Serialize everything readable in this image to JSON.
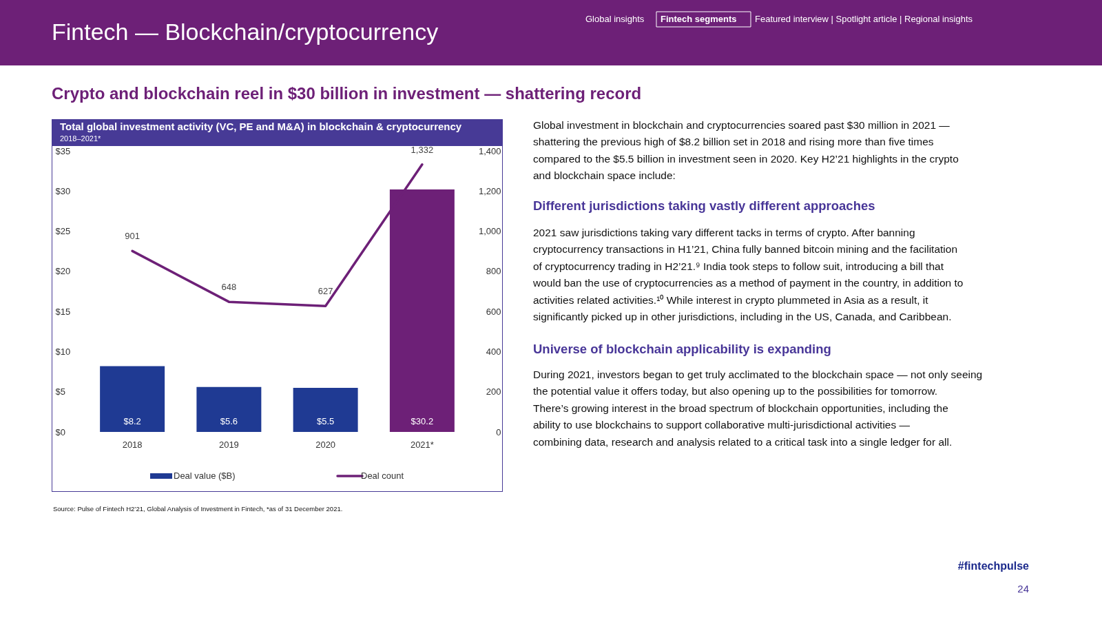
{
  "chart_data": {
    "type": "bar",
    "title": "Total global investment activity (VC, PE and M&A) in blockchain & cryptocurrency",
    "subtitle": "2018–2021*",
    "categories": [
      "2018",
      "2019",
      "2020",
      "2021*"
    ],
    "series": [
      {
        "name": "Deal value ($B)",
        "color": "#1f3a93",
        "colors": [
          "#1f3a93",
          "#1f3a93",
          "#1f3a93",
          "#6d2077"
        ],
        "values": [
          8.2,
          5.6,
          5.5,
          30.2
        ],
        "value_labels": [
          "$8.2",
          "$5.6",
          "$5.5",
          "$30.2"
        ]
      },
      {
        "name": "Deal count",
        "type": "line",
        "axis": "y2",
        "color": "#6d2077",
        "values": [
          901,
          648,
          627,
          1332
        ],
        "value_labels": [
          "901",
          "648",
          "627",
          "1,332"
        ]
      }
    ],
    "ylim": [
      0,
      35
    ],
    "yticks": [
      {
        "value": 0,
        "label": "$0"
      },
      {
        "value": 5,
        "label": "$5"
      },
      {
        "value": 10,
        "label": "$10"
      },
      {
        "value": 15,
        "label": "$15"
      },
      {
        "value": 20,
        "label": "$20"
      },
      {
        "value": 25,
        "label": "$25"
      },
      {
        "value": 30,
        "label": "$30"
      },
      {
        "value": 35,
        "label": "$35"
      }
    ],
    "y2lim": [
      0,
      1400
    ],
    "y2ticks": [
      0,
      200,
      400,
      600,
      800,
      {
        "value": 1000,
        "label": "1,000"
      },
      {
        "value": 1200,
        "label": "1,200"
      },
      {
        "value": 1400,
        "label": "1,400"
      }
    ],
    "grid": false,
    "legend": "bottom",
    "annotations": [
      "Fintech — Blockchain/cryptocurrency",
      "Global insights",
      "Fintech segments",
      "Featured interview | Spotlight article | Regional insights",
      "Crypto and blockchain reel in $30 billion in investment — shattering record",
      "Global investment in blockchain and cryptocurrencies soared past $30 million in 2021 — shattering the previous high of $8.2 billion set in 2018 and rising more than five times compared to the $5.5 billion in investment seen in 2020. Key H2’21 highlights in the crypto and blockchain space include:",
      "Different jurisdictions taking vastly different approaches",
      "2021 saw jurisdictions taking vary different tacks in terms of crypto. After banning cryptocurrency transactions in H1’21, China fully banned bitcoin mining and the facilitation of cryptocurrency trading in H2’21.⁹ India took steps to follow suit, introducing a bill that would ban the use of cryptocurrencies as a method of payment in the country, in addition to activities related activities.¹⁰ While interest in crypto plummeted in Asia as a result, it significantly picked up in other jurisdictions, including in the US, Canada, and Caribbean.",
      "Universe of blockchain applicability is expanding",
      "During 2021, investors began to get truly acclimated to the blockchain space — not only seeing the potential value it offers today, but also opening up to the possibilities for tomorrow. There’s growing interest in the broad spectrum of blockchain opportunities, including the ability to use blockchains to support collaborative multi-jurisdictional activities — combining data, research and analysis related to a critical task into a single ledger for all.",
      "Source: Pulse of Fintech H2’21, Global Analysis of Investment in Fintech, *as of 31 December 2021.",
      "#fintechpulse",
      "24"
    ]
  }
}
